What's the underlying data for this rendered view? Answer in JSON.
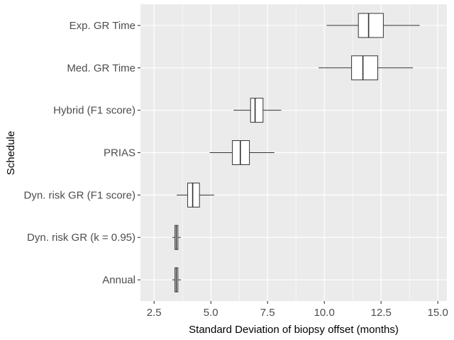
{
  "chart_data": {
    "type": "boxplot",
    "orientation": "horizontal",
    "xlabel": "Standard Deviation of biopsy offset (months)",
    "ylabel": "Schedule",
    "xlim": [
      1.9,
      15.4
    ],
    "xticks": [
      2.5,
      5.0,
      7.5,
      10.0,
      12.5,
      15.0
    ],
    "xtick_labels": [
      "2.5",
      "5.0",
      "7.5",
      "10.0",
      "12.5",
      "15.0"
    ],
    "grid": true,
    "categories": [
      "Exp. GR Time",
      "Med. GR Time",
      "Hybrid (F1 score)",
      "PRIAS",
      "Dyn. risk GR (F1 score)",
      "Dyn. risk GR (k = 0.95)",
      "Annual"
    ],
    "boxes": [
      {
        "label": "Exp. GR Time",
        "min": 10.1,
        "q1": 11.5,
        "median": 11.95,
        "q3": 12.6,
        "max": 14.2
      },
      {
        "label": "Med. GR Time",
        "min": 9.75,
        "q1": 11.2,
        "median": 11.7,
        "q3": 12.35,
        "max": 13.9
      },
      {
        "label": "Hybrid (F1 score)",
        "min": 6.0,
        "q1": 6.75,
        "median": 6.95,
        "q3": 7.3,
        "max": 8.1
      },
      {
        "label": "PRIAS",
        "min": 4.95,
        "q1": 5.95,
        "median": 6.3,
        "q3": 6.7,
        "max": 7.8
      },
      {
        "label": "Dyn. risk GR (F1 score)",
        "min": 3.5,
        "q1": 3.98,
        "median": 4.2,
        "q3": 4.5,
        "max": 5.15
      },
      {
        "label": "Dyn. risk GR (k = 0.95)",
        "min": 3.3,
        "q1": 3.42,
        "median": 3.48,
        "q3": 3.55,
        "max": 3.68
      },
      {
        "label": "Annual",
        "min": 3.3,
        "q1": 3.42,
        "median": 3.48,
        "q3": 3.55,
        "max": 3.68
      }
    ],
    "colors": {
      "panel_background": "#ebebeb",
      "grid_major": "#ffffff",
      "box_fill": "#ffffff",
      "box_stroke": "#333333",
      "tick_text": "#4d4d4d"
    }
  }
}
